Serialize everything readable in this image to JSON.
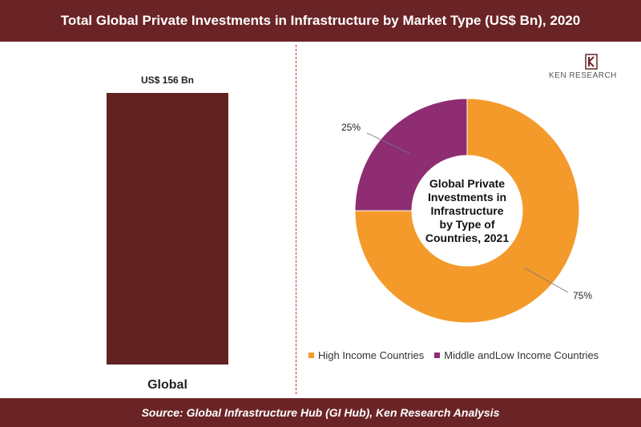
{
  "header": {
    "title": "Total Global Private Investments in Infrastructure by Market Type (US$ Bn), 2020"
  },
  "footer": {
    "source": "Source: Global Infrastructure Hub (GI Hub), Ken Research Analysis"
  },
  "logo": {
    "text": "KEN RESEARCH",
    "icon": "ken-research-logo"
  },
  "chart_data": [
    {
      "type": "bar",
      "categories": [
        "Global"
      ],
      "values": [
        156
      ],
      "data_labels": [
        "US$ 156 Bn"
      ],
      "color": "#632222",
      "grid": false
    },
    {
      "type": "pie",
      "variant": "donut",
      "center_label": [
        "Global Private",
        "Investments in",
        "Infrastructure",
        "by Type of",
        "Countries, 2021"
      ],
      "categories": [
        "High Income Countries",
        "Middle andLow Income Countries"
      ],
      "values": [
        75,
        25
      ],
      "data_labels": [
        "75%",
        "25%"
      ],
      "colors": [
        "#f39a2b",
        "#8e2d72"
      ],
      "legend_position": "bottom"
    }
  ]
}
